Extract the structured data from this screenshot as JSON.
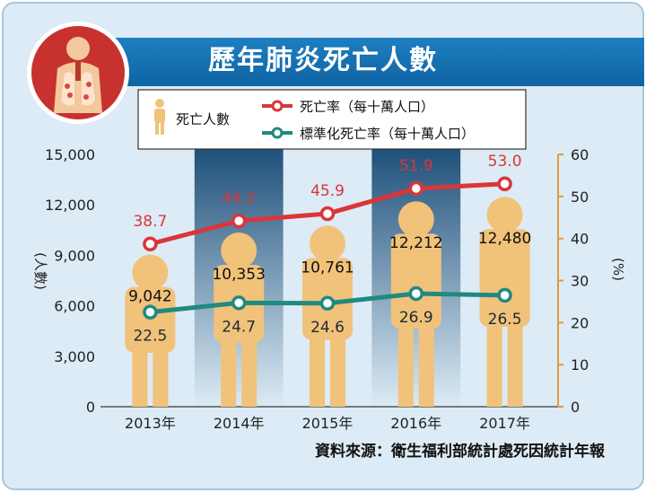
{
  "title": "歷年肺炎死亡人數",
  "source": "資料來源：衛生福利部統計處死因統計年報",
  "legend": {
    "deaths": "死亡人數",
    "rate": "死亡率（每十萬人口）",
    "standardized": "標準化死亡率（每十萬人口）"
  },
  "colors": {
    "title_bar": "#1e7fc1",
    "rate": "#d9363a",
    "standardized": "#1f8a80",
    "person": "#f1c27a",
    "highlight_band": "#1b4d78",
    "axis_right": "#e29a3c"
  },
  "chart_data": {
    "type": "bar",
    "categories": [
      "2013年",
      "2014年",
      "2015年",
      "2016年",
      "2017年"
    ],
    "series": [
      {
        "name": "死亡人數",
        "axis": "left",
        "values": [
          9042,
          10353,
          10761,
          12212,
          12480
        ],
        "labels": [
          "9,042",
          "10,353",
          "10,761",
          "12,212",
          "12,480"
        ]
      },
      {
        "name": "死亡率（每十萬人口）",
        "axis": "right",
        "type": "line",
        "values": [
          38.7,
          44.2,
          45.9,
          51.9,
          53.0
        ],
        "labels": [
          "38.7",
          "44.2",
          "45.9",
          "51.9",
          "53.0"
        ]
      },
      {
        "name": "標準化死亡率（每十萬人口）",
        "axis": "right",
        "type": "line",
        "values": [
          22.5,
          24.7,
          24.6,
          26.9,
          26.5
        ],
        "labels": [
          "22.5",
          "24.7",
          "24.6",
          "26.9",
          "26.5"
        ]
      }
    ],
    "y_left": {
      "label": "(人數)",
      "ylim": [
        0,
        15000
      ],
      "ticks": [
        0,
        3000,
        6000,
        9000,
        12000,
        15000
      ],
      "tick_labels": [
        "0",
        "3,000",
        "6,000",
        "9,000",
        "12,000",
        "15,000"
      ]
    },
    "y_right": {
      "label": "(%)",
      "ylim": [
        0,
        60
      ],
      "ticks": [
        0,
        10,
        20,
        30,
        40,
        50,
        60
      ],
      "tick_labels": [
        "0",
        "10",
        "20",
        "30",
        "40",
        "50",
        "60"
      ]
    },
    "highlight_years": [
      "2014年",
      "2016年"
    ],
    "grid": false,
    "legend_position": "top"
  }
}
